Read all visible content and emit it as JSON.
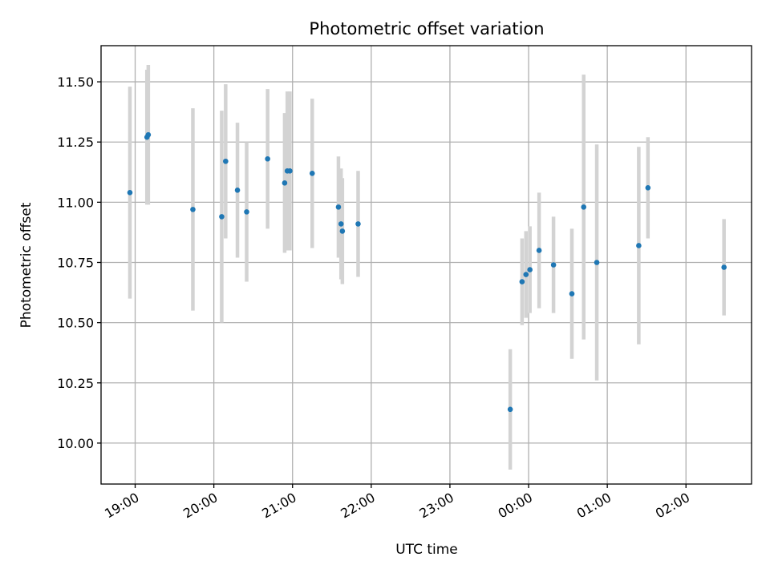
{
  "chart_data": {
    "type": "scatter",
    "title": "Photometric offset variation",
    "xlabel": "UTC time",
    "ylabel": "Photometric offset",
    "x_type": "time",
    "xlim": [
      "18:34",
      "02:50"
    ],
    "ylim": [
      9.83,
      11.65
    ],
    "x_ticks": [
      "19:00",
      "20:00",
      "21:00",
      "22:00",
      "23:00",
      "00:00",
      "01:00",
      "02:00"
    ],
    "y_ticks": [
      "10.00",
      "10.25",
      "10.50",
      "10.75",
      "11.00",
      "11.25",
      "11.50"
    ],
    "grid": true,
    "colors": {
      "points": "#1f77b4",
      "error_bars": "#d3d3d3"
    },
    "series": [
      {
        "points": [
          {
            "x": "18:56",
            "y": 11.04,
            "err": 0.44
          },
          {
            "x": "19:09",
            "y": 11.27,
            "err": 0.28
          },
          {
            "x": "19:10",
            "y": 11.28,
            "err": 0.29
          },
          {
            "x": "19:44",
            "y": 10.97,
            "err": 0.42
          },
          {
            "x": "20:06",
            "y": 10.94,
            "err": 0.44
          },
          {
            "x": "20:09",
            "y": 11.17,
            "err": 0.32
          },
          {
            "x": "20:18",
            "y": 11.05,
            "err": 0.28
          },
          {
            "x": "20:25",
            "y": 10.96,
            "err": 0.29
          },
          {
            "x": "20:41",
            "y": 11.18,
            "err": 0.29
          },
          {
            "x": "20:54",
            "y": 11.08,
            "err": 0.29
          },
          {
            "x": "20:56",
            "y": 11.13,
            "err": 0.33
          },
          {
            "x": "20:58",
            "y": 11.13,
            "err": 0.33
          },
          {
            "x": "21:15",
            "y": 11.12,
            "err": 0.31
          },
          {
            "x": "21:35",
            "y": 10.98,
            "err": 0.21
          },
          {
            "x": "21:37",
            "y": 10.91,
            "err": 0.23
          },
          {
            "x": "21:38",
            "y": 10.88,
            "err": 0.22
          },
          {
            "x": "21:50",
            "y": 10.91,
            "err": 0.22
          },
          {
            "x": "23:46",
            "y": 10.14,
            "err": 0.25
          },
          {
            "x": "23:55",
            "y": 10.67,
            "err": 0.18
          },
          {
            "x": "23:58",
            "y": 10.7,
            "err": 0.18
          },
          {
            "x": "00:01",
            "y": 10.72,
            "err": 0.18
          },
          {
            "x": "00:08",
            "y": 10.8,
            "err": 0.24
          },
          {
            "x": "00:19",
            "y": 10.74,
            "err": 0.2
          },
          {
            "x": "00:33",
            "y": 10.62,
            "err": 0.27
          },
          {
            "x": "00:42",
            "y": 10.98,
            "err": 0.55
          },
          {
            "x": "00:52",
            "y": 10.75,
            "err": 0.49
          },
          {
            "x": "01:24",
            "y": 10.82,
            "err": 0.41
          },
          {
            "x": "01:31",
            "y": 11.06,
            "err": 0.21
          },
          {
            "x": "02:29",
            "y": 10.73,
            "err": 0.2
          }
        ]
      }
    ]
  }
}
